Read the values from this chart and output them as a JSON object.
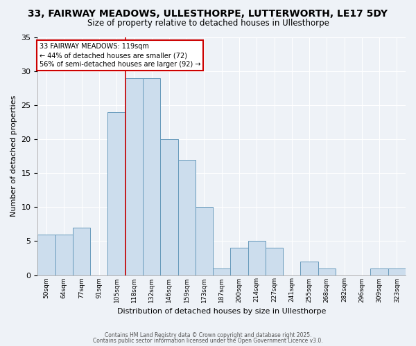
{
  "title": "33, FAIRWAY MEADOWS, ULLESTHORPE, LUTTERWORTH, LE17 5DY",
  "subtitle": "Size of property relative to detached houses in Ullesthorpe",
  "xlabel": "Distribution of detached houses by size in Ullesthorpe",
  "ylabel": "Number of detached properties",
  "bin_labels": [
    "50sqm",
    "64sqm",
    "77sqm",
    "91sqm",
    "105sqm",
    "118sqm",
    "132sqm",
    "146sqm",
    "159sqm",
    "173sqm",
    "187sqm",
    "200sqm",
    "214sqm",
    "227sqm",
    "241sqm",
    "255sqm",
    "268sqm",
    "282sqm",
    "296sqm",
    "309sqm",
    "323sqm"
  ],
  "bar_heights": [
    6,
    6,
    7,
    0,
    24,
    29,
    29,
    20,
    17,
    10,
    1,
    4,
    5,
    4,
    0,
    2,
    1,
    0,
    0,
    1,
    1
  ],
  "bar_color": "#ccdded",
  "bar_edge_color": "#6699bb",
  "ref_line_bin": 5,
  "ref_line_color": "#cc0000",
  "annotation_text": "33 FAIRWAY MEADOWS: 119sqm\n← 44% of detached houses are smaller (72)\n56% of semi-detached houses are larger (92) →",
  "annotation_box_color": "#ffffff",
  "annotation_box_edge_color": "#cc0000",
  "ylim": [
    0,
    35
  ],
  "yticks": [
    0,
    5,
    10,
    15,
    20,
    25,
    30,
    35
  ],
  "background_color": "#eef2f7",
  "grid_color": "#ffffff",
  "footer_line1": "Contains HM Land Registry data © Crown copyright and database right 2025.",
  "footer_line2": "Contains public sector information licensed under the Open Government Licence v3.0.",
  "title_fontsize": 10,
  "subtitle_fontsize": 8.5
}
